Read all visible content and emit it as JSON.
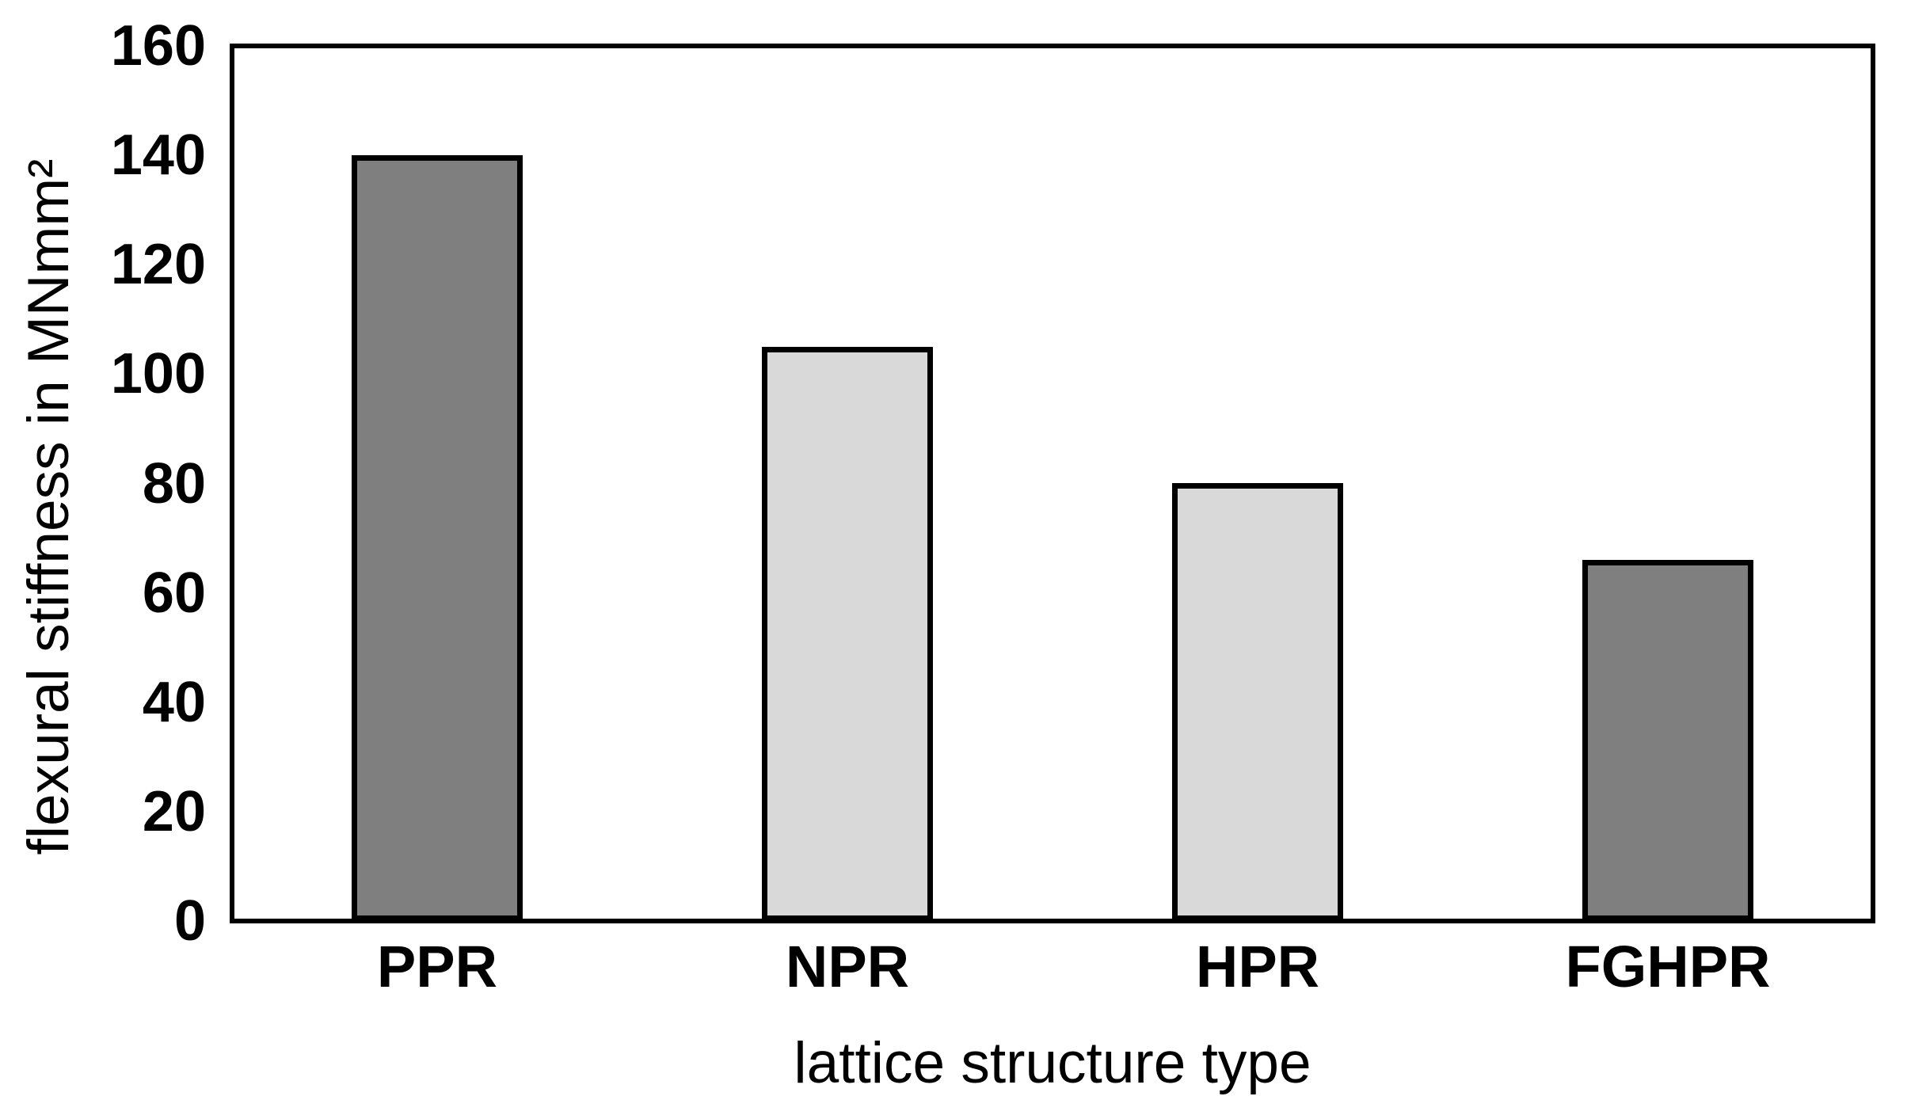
{
  "chart_data": {
    "type": "bar",
    "title": "",
    "xlabel": "lattice structure type",
    "ylabel": "flexural stiffness in MNmm²",
    "categories": [
      "PPR",
      "NPR",
      "HPR",
      "FGHPR"
    ],
    "values": [
      140,
      105,
      80,
      66
    ],
    "bar_colors": [
      "#7f7f7f",
      "#d9d9d9",
      "#d9d9d9",
      "#7f7f7f"
    ],
    "bar_border_color": "#000000",
    "axis_color": "#000000",
    "background_color": "#ffffff",
    "ylim": [
      0,
      160
    ],
    "yticks": [
      0,
      20,
      40,
      60,
      80,
      100,
      120,
      140,
      160
    ],
    "grid": false,
    "legend_position": "none"
  }
}
